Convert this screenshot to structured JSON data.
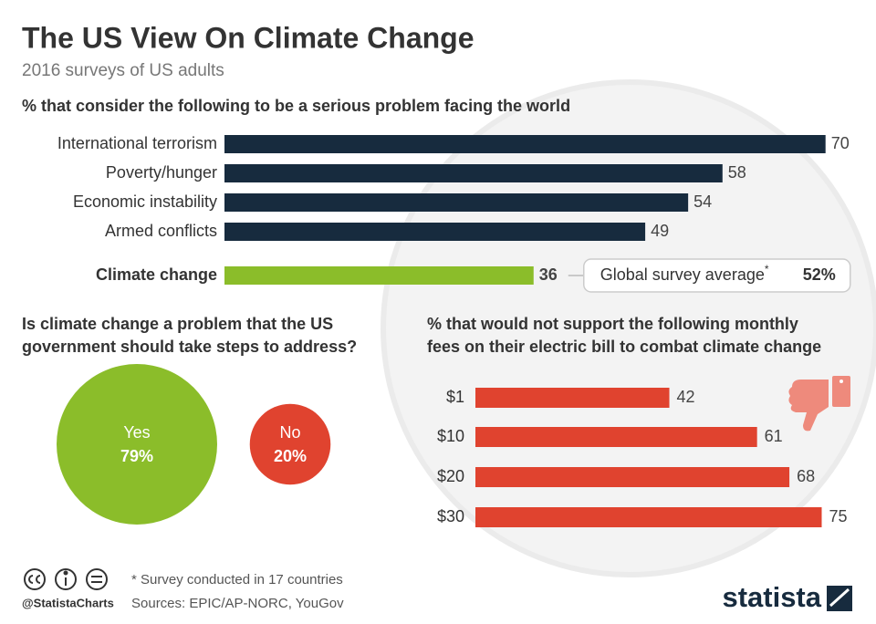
{
  "header": {
    "title": "The US View On Climate Change",
    "subtitle": "2016 surveys of US adults"
  },
  "chart_data": [
    {
      "type": "bar",
      "orientation": "horizontal",
      "title": "% that consider the following to be a serious problem facing the world",
      "categories": [
        "International terrorism",
        "Poverty/hunger",
        "Economic instability",
        "Armed conflicts",
        "Climate change"
      ],
      "values": [
        70,
        58,
        54,
        49,
        36
      ],
      "colors": [
        "#172b3e",
        "#172b3e",
        "#172b3e",
        "#172b3e",
        "#8bbd2a"
      ],
      "highlight": [
        false,
        false,
        false,
        false,
        true
      ],
      "annotation": {
        "text": "Global survey average",
        "mark": "*",
        "label": "52%"
      }
    },
    {
      "type": "bubble",
      "title": [
        "Is climate change a problem that the US",
        "government should take steps to address?"
      ],
      "categories": [
        "Yes",
        "No"
      ],
      "values": [
        79,
        20
      ],
      "value_labels": [
        "79%",
        "20%"
      ],
      "colors": [
        "#8bbd2a",
        "#e0432f"
      ]
    },
    {
      "type": "bar",
      "orientation": "horizontal",
      "title": [
        "% that would not support the following monthly",
        "fees on their electric bill to combat climate change"
      ],
      "categories": [
        "$1",
        "$10",
        "$20",
        "$30"
      ],
      "values": [
        42,
        61,
        68,
        75
      ],
      "color": "#e0432f"
    }
  ],
  "footer": {
    "note": "* Survey conducted in 17 countries",
    "sources": "Sources: EPIC/AP-NORC, YouGov",
    "handle": "@StatistaCharts",
    "brand": "statista"
  }
}
